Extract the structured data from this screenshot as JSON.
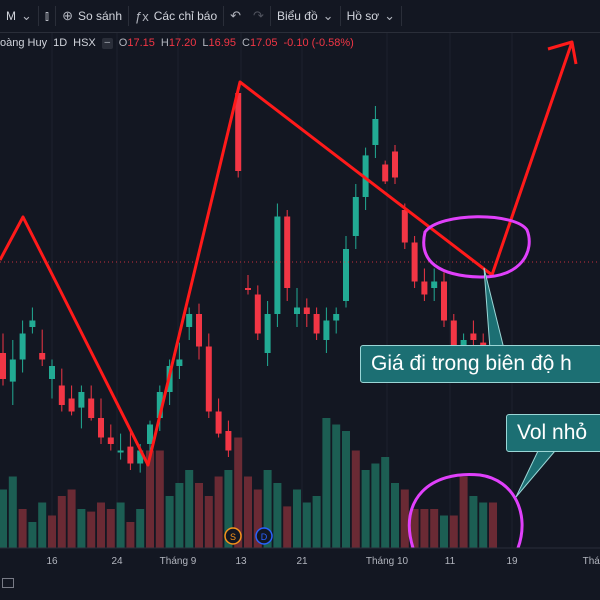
{
  "toolbar": {
    "timeframe": "M",
    "compare_label": "So sánh",
    "indicators_label": "Các chỉ báo",
    "chart_type_label": "Biểu đồ",
    "profile_label": "Hồ sơ"
  },
  "legend": {
    "symbol": "oàng Huy",
    "interval": "1D",
    "exchange": "HSX",
    "o_label": "O",
    "o_value": "17.15",
    "h_label": "H",
    "h_value": "17.20",
    "l_label": "L",
    "l_value": "16.95",
    "c_label": "C",
    "c_value": "17.05",
    "change": "-0.10 (-0.58%)"
  },
  "x_axis_labels": [
    "16",
    "24",
    "Tháng 9",
    "13",
    "21",
    "Tháng 10",
    "11",
    "19",
    "Thán"
  ],
  "event_markers": [
    "S",
    "D"
  ],
  "annotations": {
    "price_note": "Giá đi trong biên độ h",
    "volume_note": "Vol nhỏ"
  },
  "colors": {
    "up": "#22ab94",
    "down": "#f23645",
    "background": "#131722",
    "annotation_line": "#ff1a1a",
    "highlight_circle": "#e040fb",
    "callout_bg": "#1c6f73"
  },
  "chart_data": {
    "type": "candlestick",
    "title": "",
    "price_range_visible": [
      16.4,
      19.4
    ],
    "candles": [
      {
        "o": 17.3,
        "h": 17.45,
        "l": 17.05,
        "c": 17.1,
        "dir": "down"
      },
      {
        "o": 17.08,
        "h": 17.4,
        "l": 16.9,
        "c": 17.25,
        "dir": "up"
      },
      {
        "o": 17.25,
        "h": 17.55,
        "l": 17.15,
        "c": 17.45,
        "dir": "up"
      },
      {
        "o": 17.5,
        "h": 17.65,
        "l": 17.45,
        "c": 17.55,
        "dir": "up"
      },
      {
        "o": 17.3,
        "h": 17.48,
        "l": 17.2,
        "c": 17.25,
        "dir": "down"
      },
      {
        "o": 17.1,
        "h": 17.25,
        "l": 16.95,
        "c": 17.2,
        "dir": "up"
      },
      {
        "o": 17.05,
        "h": 17.18,
        "l": 16.85,
        "c": 16.9,
        "dir": "down"
      },
      {
        "o": 16.95,
        "h": 17.05,
        "l": 16.82,
        "c": 16.85,
        "dir": "down"
      },
      {
        "o": 16.88,
        "h": 17.05,
        "l": 16.72,
        "c": 17.0,
        "dir": "up"
      },
      {
        "o": 16.95,
        "h": 17.05,
        "l": 16.78,
        "c": 16.8,
        "dir": "down"
      },
      {
        "o": 16.8,
        "h": 16.95,
        "l": 16.6,
        "c": 16.65,
        "dir": "down"
      },
      {
        "o": 16.65,
        "h": 16.75,
        "l": 16.55,
        "c": 16.6,
        "dir": "down"
      },
      {
        "o": 16.55,
        "h": 16.68,
        "l": 16.48,
        "c": 16.55,
        "dir": "up"
      },
      {
        "o": 16.58,
        "h": 16.7,
        "l": 16.4,
        "c": 16.45,
        "dir": "down"
      },
      {
        "o": 16.45,
        "h": 16.6,
        "l": 16.38,
        "c": 16.55,
        "dir": "up"
      },
      {
        "o": 16.6,
        "h": 16.78,
        "l": 16.48,
        "c": 16.75,
        "dir": "up"
      },
      {
        "o": 16.8,
        "h": 17.05,
        "l": 16.7,
        "c": 17.0,
        "dir": "up"
      },
      {
        "o": 17.0,
        "h": 17.25,
        "l": 16.9,
        "c": 17.2,
        "dir": "up"
      },
      {
        "o": 17.2,
        "h": 17.38,
        "l": 17.1,
        "c": 17.25,
        "dir": "up"
      },
      {
        "o": 17.5,
        "h": 17.65,
        "l": 17.4,
        "c": 17.6,
        "dir": "up"
      },
      {
        "o": 17.6,
        "h": 17.68,
        "l": 17.25,
        "c": 17.35,
        "dir": "down"
      },
      {
        "o": 17.35,
        "h": 17.45,
        "l": 16.8,
        "c": 16.85,
        "dir": "down"
      },
      {
        "o": 16.85,
        "h": 16.95,
        "l": 16.65,
        "c": 16.68,
        "dir": "down"
      },
      {
        "o": 16.7,
        "h": 16.78,
        "l": 16.5,
        "c": 16.55,
        "dir": "down"
      },
      {
        "o": 19.3,
        "h": 19.35,
        "l": 18.65,
        "c": 18.7,
        "dir": "down"
      },
      {
        "o": 17.8,
        "h": 17.9,
        "l": 17.75,
        "c": 17.8,
        "dir": "down"
      },
      {
        "o": 17.75,
        "h": 17.82,
        "l": 17.4,
        "c": 17.45,
        "dir": "down"
      },
      {
        "o": 17.3,
        "h": 17.7,
        "l": 17.2,
        "c": 17.6,
        "dir": "up"
      },
      {
        "o": 17.6,
        "h": 18.45,
        "l": 17.5,
        "c": 18.35,
        "dir": "up"
      },
      {
        "o": 18.35,
        "h": 18.4,
        "l": 17.7,
        "c": 17.8,
        "dir": "down"
      },
      {
        "o": 17.6,
        "h": 17.8,
        "l": 17.5,
        "c": 17.65,
        "dir": "up"
      },
      {
        "o": 17.65,
        "h": 17.72,
        "l": 17.5,
        "c": 17.6,
        "dir": "down"
      },
      {
        "o": 17.6,
        "h": 17.65,
        "l": 17.4,
        "c": 17.45,
        "dir": "down"
      },
      {
        "o": 17.4,
        "h": 17.65,
        "l": 17.3,
        "c": 17.55,
        "dir": "up"
      },
      {
        "o": 17.55,
        "h": 17.65,
        "l": 17.45,
        "c": 17.6,
        "dir": "up"
      },
      {
        "o": 17.7,
        "h": 18.2,
        "l": 17.65,
        "c": 18.1,
        "dir": "up"
      },
      {
        "o": 18.2,
        "h": 18.6,
        "l": 18.1,
        "c": 18.5,
        "dir": "up"
      },
      {
        "o": 18.5,
        "h": 18.88,
        "l": 18.4,
        "c": 18.82,
        "dir": "up"
      },
      {
        "o": 18.9,
        "h": 19.2,
        "l": 18.8,
        "c": 19.1,
        "dir": "up"
      },
      {
        "o": 18.75,
        "h": 18.78,
        "l": 18.6,
        "c": 18.62,
        "dir": "down"
      },
      {
        "o": 18.85,
        "h": 18.9,
        "l": 18.6,
        "c": 18.65,
        "dir": "down"
      },
      {
        "o": 18.4,
        "h": 18.45,
        "l": 18.1,
        "c": 18.15,
        "dir": "down"
      },
      {
        "o": 18.15,
        "h": 18.2,
        "l": 17.8,
        "c": 17.85,
        "dir": "down"
      },
      {
        "o": 17.85,
        "h": 17.95,
        "l": 17.7,
        "c": 17.75,
        "dir": "down"
      },
      {
        "o": 17.8,
        "h": 17.95,
        "l": 17.7,
        "c": 17.85,
        "dir": "up"
      },
      {
        "o": 17.85,
        "h": 17.92,
        "l": 17.5,
        "c": 17.55,
        "dir": "down"
      },
      {
        "o": 17.55,
        "h": 17.6,
        "l": 17.28,
        "c": 17.3,
        "dir": "down"
      },
      {
        "o": 17.3,
        "h": 17.45,
        "l": 17.2,
        "c": 17.4,
        "dir": "up"
      },
      {
        "o": 17.45,
        "h": 17.55,
        "l": 17.35,
        "c": 17.4,
        "dir": "down"
      },
      {
        "o": 17.38,
        "h": 17.45,
        "l": 17.28,
        "c": 17.32,
        "dir": "down"
      },
      {
        "o": 17.32,
        "h": 17.45,
        "l": 17.22,
        "c": 17.4,
        "dir": "up"
      }
    ],
    "volume": [
      {
        "v": 0.45,
        "dir": "up"
      },
      {
        "v": 0.55,
        "dir": "up"
      },
      {
        "v": 0.3,
        "dir": "down"
      },
      {
        "v": 0.2,
        "dir": "up"
      },
      {
        "v": 0.35,
        "dir": "up"
      },
      {
        "v": 0.25,
        "dir": "down"
      },
      {
        "v": 0.4,
        "dir": "down"
      },
      {
        "v": 0.45,
        "dir": "down"
      },
      {
        "v": 0.3,
        "dir": "up"
      },
      {
        "v": 0.28,
        "dir": "down"
      },
      {
        "v": 0.35,
        "dir": "down"
      },
      {
        "v": 0.3,
        "dir": "down"
      },
      {
        "v": 0.35,
        "dir": "up"
      },
      {
        "v": 0.2,
        "dir": "down"
      },
      {
        "v": 0.3,
        "dir": "up"
      },
      {
        "v": 0.75,
        "dir": "down"
      },
      {
        "v": 0.75,
        "dir": "down"
      },
      {
        "v": 0.4,
        "dir": "up"
      },
      {
        "v": 0.5,
        "dir": "up"
      },
      {
        "v": 0.6,
        "dir": "up"
      },
      {
        "v": 0.5,
        "dir": "down"
      },
      {
        "v": 0.4,
        "dir": "down"
      },
      {
        "v": 0.55,
        "dir": "down"
      },
      {
        "v": 0.6,
        "dir": "up"
      },
      {
        "v": 0.85,
        "dir": "down"
      },
      {
        "v": 0.55,
        "dir": "down"
      },
      {
        "v": 0.45,
        "dir": "down"
      },
      {
        "v": 0.6,
        "dir": "up"
      },
      {
        "v": 0.5,
        "dir": "up"
      },
      {
        "v": 0.32,
        "dir": "down"
      },
      {
        "v": 0.45,
        "dir": "up"
      },
      {
        "v": 0.35,
        "dir": "up"
      },
      {
        "v": 0.4,
        "dir": "up"
      },
      {
        "v": 1.25,
        "dir": "up"
      },
      {
        "v": 0.95,
        "dir": "up"
      },
      {
        "v": 0.9,
        "dir": "up"
      },
      {
        "v": 0.75,
        "dir": "down"
      },
      {
        "v": 0.6,
        "dir": "up"
      },
      {
        "v": 0.65,
        "dir": "up"
      },
      {
        "v": 0.7,
        "dir": "up"
      },
      {
        "v": 0.5,
        "dir": "up"
      },
      {
        "v": 0.45,
        "dir": "down"
      },
      {
        "v": 0.3,
        "dir": "down"
      },
      {
        "v": 0.3,
        "dir": "down"
      },
      {
        "v": 0.3,
        "dir": "down"
      },
      {
        "v": 0.25,
        "dir": "up"
      },
      {
        "v": 0.25,
        "dir": "down"
      },
      {
        "v": 0.55,
        "dir": "down"
      },
      {
        "v": 0.4,
        "dir": "up"
      },
      {
        "v": 0.35,
        "dir": "up"
      },
      {
        "v": 0.35,
        "dir": "down"
      }
    ]
  }
}
